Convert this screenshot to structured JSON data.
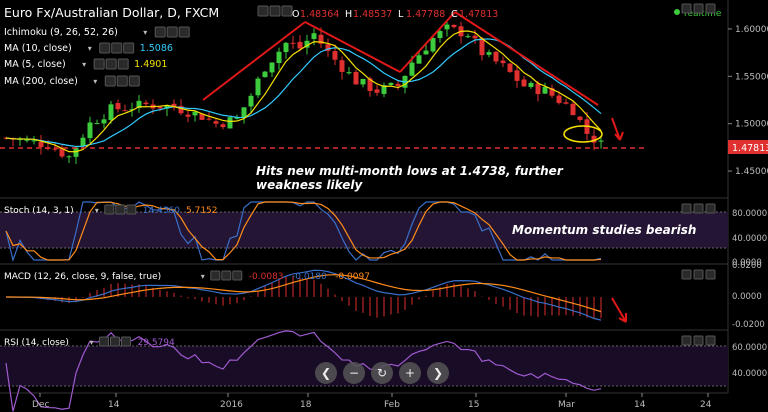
{
  "header": {
    "symbol_title": "Euro Fx/Australian Dollar, D, FXCM",
    "ohlc": [
      {
        "k": "O",
        "v": "1.48364"
      },
      {
        "k": "H",
        "v": "1.48537"
      },
      {
        "k": "L",
        "v": "1.47788"
      },
      {
        "k": "C",
        "v": "1.47813"
      }
    ],
    "realtime_label": "realtime"
  },
  "indicators": [
    {
      "label": "Ichimoku (9, 26, 52, 26)",
      "value": "",
      "color": "#ffffff"
    },
    {
      "label": "MA (10, close)",
      "value": "1.5086",
      "color": "#33ccff"
    },
    {
      "label": "MA (5, close)",
      "value": "1.4901",
      "color": "#f5e000"
    },
    {
      "label": "MA (200, close)",
      "value": "",
      "color": "#ffffff"
    }
  ],
  "price_axis": {
    "ticks": [
      "1.60000",
      "1.55000",
      "1.50000",
      "1.45000"
    ],
    "current_price": "1.47813"
  },
  "annotations": {
    "main_note_line1": "Hits new multi-month lows at 1.4738, further",
    "main_note_line2": "weakness likely",
    "stoch_note": "Momentum studies bearish"
  },
  "stoch": {
    "label": "Stoch (14, 3, 1)",
    "values": [
      {
        "v": "14.4360",
        "c": "#3a6fc9"
      },
      {
        "v": "5.7152",
        "c": "#ff8c1a"
      }
    ],
    "ticks": [
      "80.0000",
      "40.0000",
      "0.0000"
    ]
  },
  "macd": {
    "label": "MACD (12, 26, close, 9, false, true)",
    "values": [
      {
        "v": "-0.0083",
        "c": "#e03030"
      },
      {
        "v": "-0.0180",
        "c": "#3a6fc9"
      },
      {
        "v": "-0.0097",
        "c": "#ff8c1a"
      }
    ],
    "ticks": [
      "0.0200",
      "0.0000",
      "-0.0200"
    ]
  },
  "rsi": {
    "label": "RSI (14, close)",
    "values": [
      {
        "v": "29.5794",
        "c": "#a05ad0"
      }
    ],
    "ticks": [
      "60.0000",
      "40.0000"
    ]
  },
  "time_axis": [
    "Dec",
    "14",
    "2016",
    "18",
    "Feb",
    "15",
    "Mar",
    "14",
    "24"
  ],
  "nav_buttons": [
    {
      "name": "scroll-left-button",
      "icon": "chevron-left-icon",
      "glyph": "❮"
    },
    {
      "name": "zoom-out-button",
      "icon": "minus-icon",
      "glyph": "−"
    },
    {
      "name": "reset-button",
      "icon": "refresh-icon",
      "glyph": "↻"
    },
    {
      "name": "zoom-in-button",
      "icon": "plus-icon",
      "glyph": "+"
    },
    {
      "name": "scroll-right-button",
      "icon": "chevron-right-icon",
      "glyph": "❯"
    }
  ],
  "colors": {
    "bull": "#3dcc3d",
    "bear": "#e03030",
    "ma10": "#33ccff",
    "ma5": "#f5e000",
    "support": "#e03030",
    "trend": "#e01818",
    "stoch_band": "#241534",
    "rsi": "#a05ad0",
    "axis_text": "#bbbbbb",
    "price_badge": "#e03030"
  }
}
